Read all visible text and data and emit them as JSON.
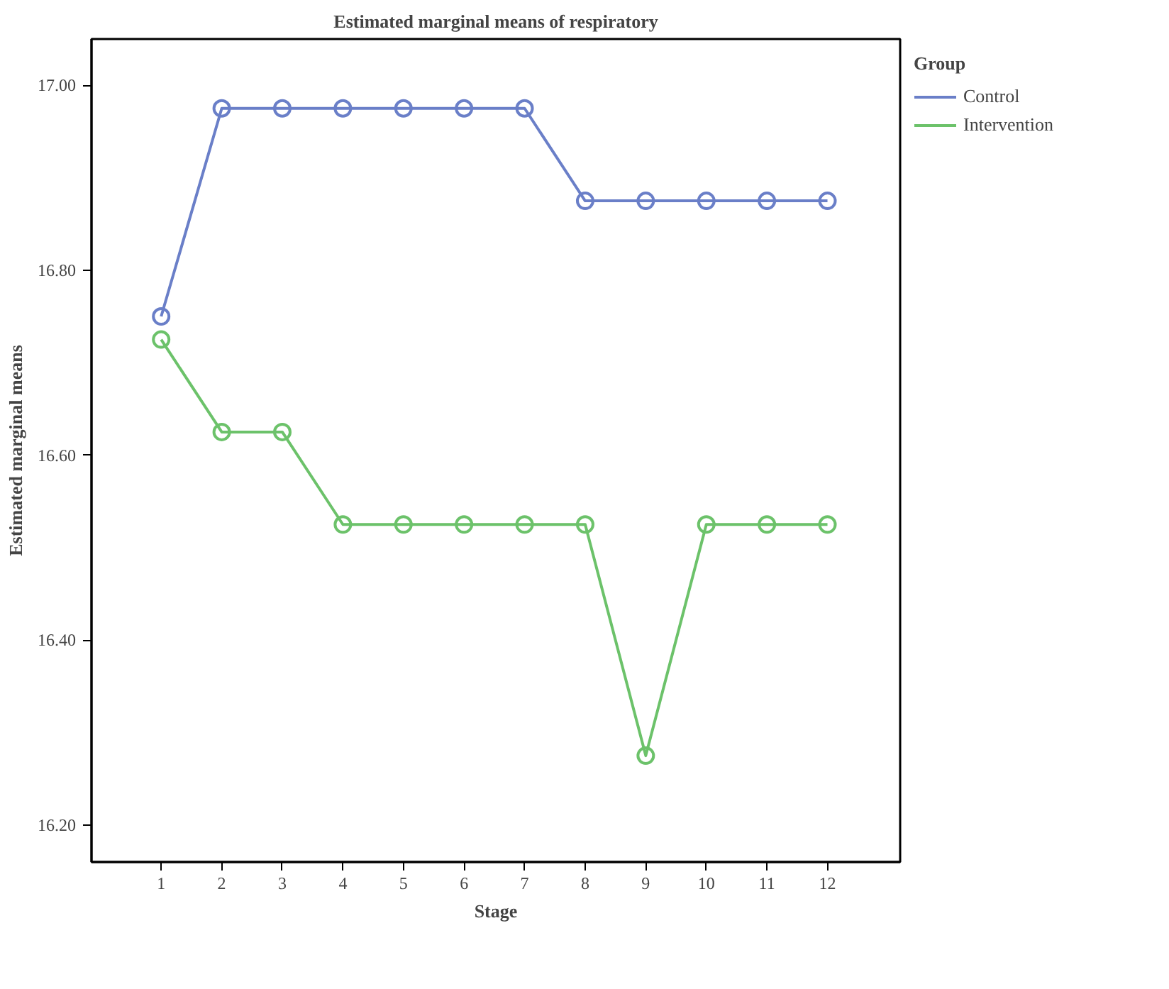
{
  "chart_data": {
    "type": "line",
    "title": "Estimated marginal means of respiratory",
    "xlabel": "Stage",
    "ylabel": "Estimated marginal means",
    "legend_title": "Group",
    "x": [
      1,
      2,
      3,
      4,
      5,
      6,
      7,
      8,
      9,
      10,
      11,
      12
    ],
    "series": [
      {
        "name": "Control",
        "color": "#6a7fc8",
        "values": [
          16.75,
          16.975,
          16.975,
          16.975,
          16.975,
          16.975,
          16.975,
          16.875,
          16.875,
          16.875,
          16.875,
          16.875
        ]
      },
      {
        "name": "Intervention",
        "color": "#6cc26a",
        "values": [
          16.725,
          16.625,
          16.625,
          16.525,
          16.525,
          16.525,
          16.525,
          16.525,
          16.275,
          16.525,
          16.525,
          16.525
        ]
      }
    ],
    "xlim": [
      -0.15,
      13.2
    ],
    "ylim": [
      16.16,
      17.05
    ],
    "xticks": [
      1,
      2,
      3,
      4,
      5,
      6,
      7,
      8,
      9,
      10,
      11,
      12
    ],
    "yticks": [
      {
        "value": 16.2,
        "label": "16.20"
      },
      {
        "value": 16.4,
        "label": "16.40"
      },
      {
        "value": 16.6,
        "label": "16.60"
      },
      {
        "value": 16.8,
        "label": "16.80"
      },
      {
        "value": 17.0,
        "label": "17.00"
      }
    ],
    "grid": false,
    "legend": "top right",
    "marker": "circle",
    "line_style": "solid"
  }
}
